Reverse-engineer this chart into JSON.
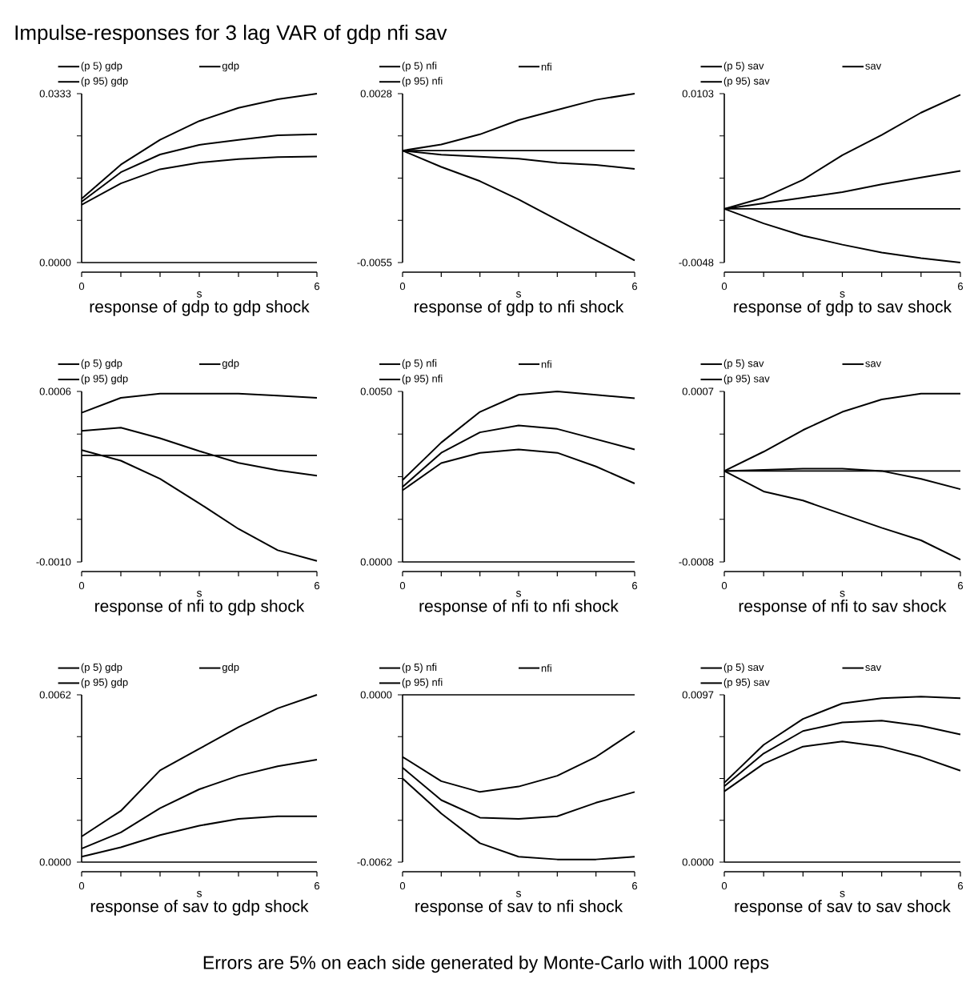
{
  "chart_data": [
    {
      "type": "line",
      "title": "response of gdp to gdp shock",
      "xlabel": "s",
      "x": [
        0,
        1,
        2,
        3,
        4,
        5,
        6
      ],
      "xlim": [
        0,
        6
      ],
      "xticks": [
        0,
        {
          "value": 1,
          "label": null
        },
        {
          "value": 2,
          "label": null
        },
        {
          "value": 3,
          "label": null
        },
        {
          "value": 4,
          "label": null
        },
        {
          "value": 5,
          "label": null
        },
        6
      ],
      "ylim": [
        0,
        0.0333
      ],
      "yticks": [
        {
          "value": 0,
          "label": "0.0000"
        },
        {
          "value": 0.008325,
          "label": null
        },
        {
          "value": 0.01665,
          "label": null
        },
        {
          "value": 0.024975,
          "label": null
        },
        {
          "value": 0.0333,
          "label": "0.0333"
        }
      ],
      "legend": "top left",
      "annotations": [
        "Impulse-responses for 3 lag VAR of gdp nfi sav"
      ],
      "ref_lines": [
        {
          "axis": "y",
          "value": 0
        }
      ],
      "series": [
        {
          "name": "(p 5) gdp",
          "color": "#000000",
          "values": [
            0.0114,
            0.0156,
            0.0184,
            0.0197,
            0.0204,
            0.0208,
            0.0209
          ]
        },
        {
          "name": "gdp",
          "color": "#000000",
          "values": [
            0.012,
            0.0178,
            0.0213,
            0.0232,
            0.0242,
            0.0251,
            0.0253
          ]
        },
        {
          "name": "(p 95) gdp",
          "color": "#000000",
          "values": [
            0.0126,
            0.0193,
            0.0242,
            0.0279,
            0.0305,
            0.0322,
            0.0333
          ]
        }
      ]
    },
    {
      "type": "line",
      "title": "response of gdp to nfi shock",
      "xlabel": "s",
      "x": [
        0,
        1,
        2,
        3,
        4,
        5,
        6
      ],
      "xlim": [
        0,
        6
      ],
      "xticks": [
        0,
        {
          "value": 1,
          "label": null
        },
        {
          "value": 2,
          "label": null
        },
        {
          "value": 3,
          "label": null
        },
        {
          "value": 4,
          "label": null
        },
        {
          "value": 5,
          "label": null
        },
        6
      ],
      "ylim": [
        -0.0055,
        0.0028
      ],
      "yticks": [
        {
          "value": -0.0055,
          "label": "-0.0055"
        },
        {
          "value": -0.003425,
          "label": null
        },
        {
          "value": -0.00135,
          "label": null
        },
        {
          "value": 0.000725,
          "label": null
        },
        {
          "value": 0.0028,
          "label": "0.0028"
        }
      ],
      "legend": "top left",
      "ref_lines": [
        {
          "axis": "y",
          "value": 0
        }
      ],
      "series": [
        {
          "name": "(p 5) nfi",
          "color": "#000000",
          "values": [
            0,
            -0.0008,
            -0.0015,
            -0.0024,
            -0.0034,
            -0.0044,
            -0.0054
          ]
        },
        {
          "name": "nfi",
          "color": "#000000",
          "values": [
            0,
            -0.0002,
            -0.0003,
            -0.0004,
            -0.0006,
            -0.0007,
            -0.0009
          ]
        },
        {
          "name": "(p 95) nfi",
          "color": "#000000",
          "values": [
            0,
            0.0003,
            0.0008,
            0.0015,
            0.002,
            0.0025,
            0.0028
          ]
        }
      ]
    },
    {
      "type": "line",
      "title": "response of gdp to sav shock",
      "xlabel": "s",
      "x": [
        0,
        1,
        2,
        3,
        4,
        5,
        6
      ],
      "xlim": [
        0,
        6
      ],
      "xticks": [
        0,
        {
          "value": 1,
          "label": null
        },
        {
          "value": 2,
          "label": null
        },
        {
          "value": 3,
          "label": null
        },
        {
          "value": 4,
          "label": null
        },
        {
          "value": 5,
          "label": null
        },
        6
      ],
      "ylim": [
        -0.0048,
        0.0103
      ],
      "yticks": [
        {
          "value": -0.0048,
          "label": "-0.0048"
        },
        {
          "value": -0.001025,
          "label": null
        },
        {
          "value": 0.00275,
          "label": null
        },
        {
          "value": 0.006525,
          "label": null
        },
        {
          "value": 0.0103,
          "label": "0.0103"
        }
      ],
      "legend": "top left",
      "ref_lines": [
        {
          "axis": "y",
          "value": 0
        }
      ],
      "series": [
        {
          "name": "(p 5) sav",
          "color": "#000000",
          "values": [
            0,
            -0.0013,
            -0.0024,
            -0.0032,
            -0.0039,
            -0.0044,
            -0.0048
          ]
        },
        {
          "name": "sav",
          "color": "#000000",
          "values": [
            0,
            0.0005,
            0.001,
            0.0015,
            0.0022,
            0.0028,
            0.0034
          ]
        },
        {
          "name": "(p 95) sav",
          "color": "#000000",
          "values": [
            0,
            0.001,
            0.0026,
            0.0048,
            0.0066,
            0.0086,
            0.0102
          ]
        }
      ]
    },
    {
      "type": "line",
      "title": "response of nfi to gdp shock",
      "xlabel": "s",
      "x": [
        0,
        1,
        2,
        3,
        4,
        5,
        6
      ],
      "xlim": [
        0,
        6
      ],
      "xticks": [
        0,
        {
          "value": 1,
          "label": null
        },
        {
          "value": 2,
          "label": null
        },
        {
          "value": 3,
          "label": null
        },
        {
          "value": 4,
          "label": null
        },
        {
          "value": 5,
          "label": null
        },
        6
      ],
      "ylim": [
        -0.001,
        0.0006
      ],
      "yticks": [
        {
          "value": -0.001,
          "label": "-0.0010"
        },
        {
          "value": -0.0006,
          "label": null
        },
        {
          "value": -0.0002,
          "label": null
        },
        {
          "value": 0.0002,
          "label": null
        },
        {
          "value": 0.0006,
          "label": "0.0006"
        }
      ],
      "legend": "top left",
      "ref_lines": [
        {
          "axis": "y",
          "value": 0
        }
      ],
      "series": [
        {
          "name": "(p 5) gdp",
          "color": "#000000",
          "values": [
            5e-05,
            -5e-05,
            -0.00022,
            -0.00045,
            -0.00069,
            -0.00089,
            -0.00099
          ]
        },
        {
          "name": "gdp",
          "color": "#000000",
          "values": [
            0.00023,
            0.00026,
            0.00016,
            4e-05,
            -7e-05,
            -0.00014,
            -0.00019
          ]
        },
        {
          "name": "(p 95) gdp",
          "color": "#000000",
          "values": [
            0.0004,
            0.00054,
            0.00058,
            0.00058,
            0.00058,
            0.00056,
            0.00054
          ]
        }
      ]
    },
    {
      "type": "line",
      "title": "response of nfi to nfi shock",
      "xlabel": "s",
      "x": [
        0,
        1,
        2,
        3,
        4,
        5,
        6
      ],
      "xlim": [
        0,
        6
      ],
      "xticks": [
        0,
        {
          "value": 1,
          "label": null
        },
        {
          "value": 2,
          "label": null
        },
        {
          "value": 3,
          "label": null
        },
        {
          "value": 4,
          "label": null
        },
        {
          "value": 5,
          "label": null
        },
        6
      ],
      "ylim": [
        0,
        0.005
      ],
      "yticks": [
        {
          "value": 0,
          "label": "0.0000"
        },
        {
          "value": 0.00125,
          "label": null
        },
        {
          "value": 0.0025,
          "label": null
        },
        {
          "value": 0.00375,
          "label": null
        },
        {
          "value": 0.005,
          "label": "0.0050"
        }
      ],
      "legend": "top left",
      "ref_lines": [
        {
          "axis": "y",
          "value": 0
        }
      ],
      "series": [
        {
          "name": "(p 5) nfi",
          "color": "#000000",
          "values": [
            0.0021,
            0.0029,
            0.0032,
            0.0033,
            0.0032,
            0.0028,
            0.0023
          ]
        },
        {
          "name": "nfi",
          "color": "#000000",
          "values": [
            0.0022,
            0.0032,
            0.0038,
            0.004,
            0.0039,
            0.0036,
            0.0033
          ]
        },
        {
          "name": "(p 95) nfi",
          "color": "#000000",
          "values": [
            0.0024,
            0.0035,
            0.0044,
            0.0049,
            0.005,
            0.0049,
            0.0048
          ]
        }
      ]
    },
    {
      "type": "line",
      "title": "response of nfi to sav shock",
      "xlabel": "s",
      "x": [
        0,
        1,
        2,
        3,
        4,
        5,
        6
      ],
      "xlim": [
        0,
        6
      ],
      "xticks": [
        0,
        {
          "value": 1,
          "label": null
        },
        {
          "value": 2,
          "label": null
        },
        {
          "value": 3,
          "label": null
        },
        {
          "value": 4,
          "label": null
        },
        {
          "value": 5,
          "label": null
        },
        6
      ],
      "ylim": [
        -0.0008,
        0.0007
      ],
      "yticks": [
        {
          "value": -0.0008,
          "label": "-0.0008"
        },
        {
          "value": -0.000425,
          "label": null
        },
        {
          "value": -5e-05,
          "label": null
        },
        {
          "value": 0.000325,
          "label": null
        },
        {
          "value": 0.0007,
          "label": "0.0007"
        }
      ],
      "legend": "top left",
      "ref_lines": [
        {
          "axis": "y",
          "value": 0
        }
      ],
      "series": [
        {
          "name": "(p 5) sav",
          "color": "#000000",
          "values": [
            0,
            -0.00018,
            -0.00026,
            -0.00038,
            -0.0005,
            -0.00061,
            -0.00078
          ]
        },
        {
          "name": "sav",
          "color": "#000000",
          "values": [
            0,
            1e-05,
            2e-05,
            2e-05,
            0,
            -7e-05,
            -0.00016
          ]
        },
        {
          "name": "(p 95) sav",
          "color": "#000000",
          "values": [
            0,
            0.00017,
            0.00036,
            0.00052,
            0.00063,
            0.00068,
            0.00068
          ]
        }
      ]
    },
    {
      "type": "line",
      "title": "response of sav to gdp shock",
      "xlabel": "s",
      "x": [
        0,
        1,
        2,
        3,
        4,
        5,
        6
      ],
      "xlim": [
        0,
        6
      ],
      "xticks": [
        0,
        {
          "value": 1,
          "label": null
        },
        {
          "value": 2,
          "label": null
        },
        {
          "value": 3,
          "label": null
        },
        {
          "value": 4,
          "label": null
        },
        {
          "value": 5,
          "label": null
        },
        6
      ],
      "ylim": [
        0,
        0.0062
      ],
      "yticks": [
        {
          "value": 0,
          "label": "0.0000"
        },
        {
          "value": 0.00155,
          "label": null
        },
        {
          "value": 0.0031,
          "label": null
        },
        {
          "value": 0.00465,
          "label": null
        },
        {
          "value": 0.0062,
          "label": "0.0062"
        }
      ],
      "legend": "top left",
      "ref_lines": [
        {
          "axis": "y",
          "value": 0
        }
      ],
      "series": [
        {
          "name": "(p 5) gdp",
          "color": "#000000",
          "values": [
            0.0002,
            0.00055,
            0.001,
            0.00135,
            0.0016,
            0.0017,
            0.0017
          ]
        },
        {
          "name": "gdp",
          "color": "#000000",
          "values": [
            0.0005,
            0.0011,
            0.002,
            0.0027,
            0.0032,
            0.00355,
            0.0038
          ]
        },
        {
          "name": "(p 95) gdp",
          "color": "#000000",
          "values": [
            0.00095,
            0.0019,
            0.0034,
            0.0042,
            0.005,
            0.0057,
            0.0062
          ]
        }
      ]
    },
    {
      "type": "line",
      "title": "response of sav to nfi shock",
      "xlabel": "s",
      "x": [
        0,
        1,
        2,
        3,
        4,
        5,
        6
      ],
      "xlim": [
        0,
        6
      ],
      "xticks": [
        0,
        {
          "value": 1,
          "label": null
        },
        {
          "value": 2,
          "label": null
        },
        {
          "value": 3,
          "label": null
        },
        {
          "value": 4,
          "label": null
        },
        {
          "value": 5,
          "label": null
        },
        6
      ],
      "ylim": [
        -0.0062,
        0
      ],
      "yticks": [
        {
          "value": -0.0062,
          "label": "-0.0062"
        },
        {
          "value": -0.00465,
          "label": null
        },
        {
          "value": -0.0031,
          "label": null
        },
        {
          "value": -0.00155,
          "label": null
        },
        {
          "value": 0,
          "label": "0.0000"
        }
      ],
      "legend": "top left",
      "ref_lines": [
        {
          "axis": "y",
          "value": 0
        }
      ],
      "series": [
        {
          "name": "(p 5) nfi",
          "color": "#000000",
          "values": [
            -0.0031,
            -0.0044,
            -0.0055,
            -0.006,
            -0.0061,
            -0.0061,
            -0.006
          ]
        },
        {
          "name": "nfi",
          "color": "#000000",
          "values": [
            -0.0027,
            -0.0039,
            -0.00455,
            -0.0046,
            -0.0045,
            -0.004,
            -0.0036
          ]
        },
        {
          "name": "(p 95) nfi",
          "color": "#000000",
          "values": [
            -0.0023,
            -0.0032,
            -0.0036,
            -0.0034,
            -0.003,
            -0.0023,
            -0.00135
          ]
        }
      ]
    },
    {
      "type": "line",
      "title": "response of sav to sav shock",
      "xlabel": "s",
      "x": [
        0,
        1,
        2,
        3,
        4,
        5,
        6
      ],
      "xlim": [
        0,
        6
      ],
      "xticks": [
        0,
        {
          "value": 1,
          "label": null
        },
        {
          "value": 2,
          "label": null
        },
        {
          "value": 3,
          "label": null
        },
        {
          "value": 4,
          "label": null
        },
        {
          "value": 5,
          "label": null
        },
        6
      ],
      "ylim": [
        0,
        0.0097
      ],
      "yticks": [
        {
          "value": 0,
          "label": "0.0000"
        },
        {
          "value": 0.002425,
          "label": null
        },
        {
          "value": 0.00485,
          "label": null
        },
        {
          "value": 0.007275,
          "label": null
        },
        {
          "value": 0.0097,
          "label": "0.0097"
        }
      ],
      "legend": "top left",
      "ref_lines": [
        {
          "axis": "y",
          "value": 0
        }
      ],
      "annotations": [
        "Errors are 5% on each side generated by Monte-Carlo with 1000 reps"
      ],
      "series": [
        {
          "name": "(p 5) sav",
          "color": "#000000",
          "values": [
            0.0041,
            0.0057,
            0.0067,
            0.007,
            0.0067,
            0.0061,
            0.0053
          ]
        },
        {
          "name": "sav",
          "color": "#000000",
          "values": [
            0.0044,
            0.0063,
            0.0076,
            0.0081,
            0.0082,
            0.0079,
            0.0074
          ]
        },
        {
          "name": "(p 95) sav",
          "color": "#000000",
          "values": [
            0.0046,
            0.0068,
            0.0083,
            0.0092,
            0.0095,
            0.0096,
            0.0095
          ]
        }
      ]
    }
  ]
}
